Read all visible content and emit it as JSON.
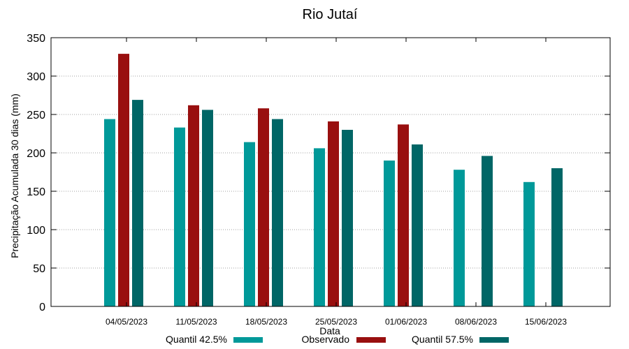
{
  "chart_data": {
    "type": "bar",
    "title": "Rio Jutaí",
    "xlabel": "Data",
    "ylabel": "Precipitação Acumulada 30 dias (mm)",
    "ylim": [
      0,
      350
    ],
    "yticks": [
      0,
      50,
      100,
      150,
      200,
      250,
      300,
      350
    ],
    "grid": true,
    "legend_position": "bottom",
    "categories": [
      "04/05/2023",
      "11/05/2023",
      "18/05/2023",
      "25/05/2023",
      "01/06/2023",
      "08/06/2023",
      "15/06/2023"
    ],
    "series": [
      {
        "name": "Quantil 42.5%",
        "color": "#009999",
        "values": [
          244,
          233,
          214,
          206,
          190,
          178,
          162
        ]
      },
      {
        "name": "Observado",
        "color": "#990f0f",
        "values": [
          329,
          262,
          258,
          241,
          237,
          null,
          null
        ]
      },
      {
        "name": "Quantil 57.5%",
        "color": "#006666",
        "values": [
          269,
          256,
          244,
          230,
          211,
          196,
          180
        ]
      }
    ]
  }
}
